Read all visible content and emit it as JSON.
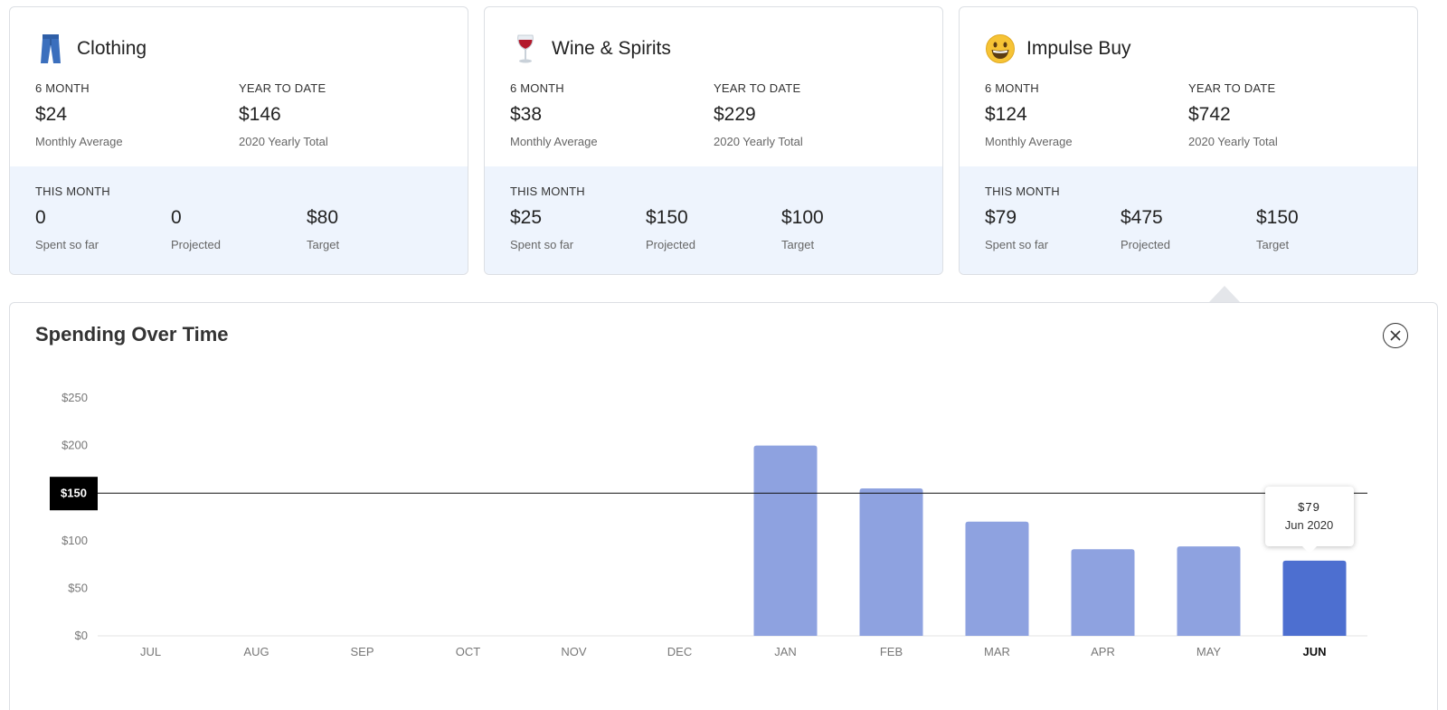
{
  "cards": [
    {
      "name": "Clothing",
      "icon": "jeans-icon",
      "six_month_label": "6 MONTH",
      "six_month_value": "$24",
      "six_month_sub": "Monthly Average",
      "ytd_label": "YEAR TO DATE",
      "ytd_value": "$146",
      "ytd_sub": "2020 Yearly Total",
      "this_month_label": "THIS MONTH",
      "spent_value": "0",
      "spent_label": "Spent so far",
      "projected_value": "0",
      "projected_label": "Projected",
      "target_value": "$80",
      "target_label": "Target"
    },
    {
      "name": "Wine & Spirits",
      "icon": "wine-glass-icon",
      "six_month_label": "6 MONTH",
      "six_month_value": "$38",
      "six_month_sub": "Monthly Average",
      "ytd_label": "YEAR TO DATE",
      "ytd_value": "$229",
      "ytd_sub": "2020 Yearly Total",
      "this_month_label": "THIS MONTH",
      "spent_value": "$25",
      "spent_label": "Spent so far",
      "projected_value": "$150",
      "projected_label": "Projected",
      "target_value": "$100",
      "target_label": "Target"
    },
    {
      "name": "Impulse Buy",
      "icon": "grinning-face-icon",
      "six_month_label": "6 MONTH",
      "six_month_value": "$124",
      "six_month_sub": "Monthly Average",
      "ytd_label": "YEAR TO DATE",
      "ytd_value": "$742",
      "ytd_sub": "2020 Yearly Total",
      "this_month_label": "THIS MONTH",
      "spent_value": "$79",
      "spent_label": "Spent so far",
      "projected_value": "$475",
      "projected_label": "Projected",
      "target_value": "$150",
      "target_label": "Target"
    }
  ],
  "panel": {
    "title": "Spending Over Time",
    "close_icon": "close-circle-icon"
  },
  "colors": {
    "bar": "#8ea2e0",
    "bar_active": "#4d6fd0",
    "target_line": "#111111"
  },
  "chart_data": {
    "type": "bar",
    "categories": [
      "JUL",
      "AUG",
      "SEP",
      "OCT",
      "NOV",
      "DEC",
      "JAN",
      "FEB",
      "MAR",
      "APR",
      "MAY",
      "JUN"
    ],
    "values": [
      0,
      0,
      0,
      0,
      0,
      0,
      200,
      155,
      120,
      91,
      94,
      79
    ],
    "ylim": [
      0,
      250
    ],
    "yticks": [
      0,
      50,
      100,
      150,
      200,
      250
    ],
    "ytick_labels": [
      "$0",
      "$50",
      "$100",
      "$150",
      "$200",
      "$250"
    ],
    "target": 150,
    "target_label": "$150",
    "active_index": 11,
    "tooltip": {
      "amount": "$79",
      "period": "Jun 2020"
    },
    "grid": false
  }
}
